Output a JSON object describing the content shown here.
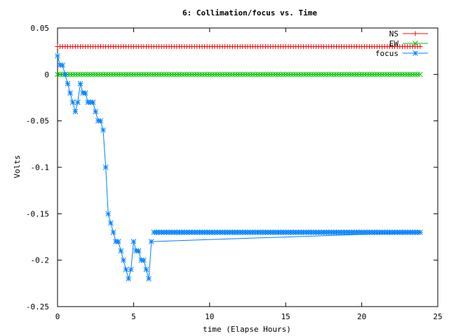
{
  "chart_data": {
    "type": "line",
    "title": "6: Collimation/focus vs. Time",
    "xlabel": "time (Elapse Hours)",
    "ylabel": "Volts",
    "xlim": [
      0,
      25
    ],
    "ylim": [
      -0.25,
      0.05
    ],
    "x_ticks": [
      "0",
      "5",
      "10",
      "15",
      "20",
      "25"
    ],
    "y_ticks": [
      "0.05",
      "0",
      "-0.05",
      "-0.1",
      "-0.15",
      "-0.2",
      "-0.25"
    ],
    "grid": false,
    "legend_position": "top-right",
    "series": [
      {
        "name": "NS",
        "color": "#ff0000",
        "marker": "plus",
        "x": [
          0,
          24
        ],
        "y": [
          0.03,
          0.03
        ],
        "sample_interval": 0.1667
      },
      {
        "name": "EW",
        "color": "#00c000",
        "marker": "x",
        "x": [
          0,
          24
        ],
        "y": [
          0.0,
          0.0
        ],
        "sample_interval": 0.1667
      },
      {
        "name": "focus",
        "color": "#0080ff",
        "marker": "star",
        "x": [
          0.0,
          0.17,
          0.33,
          0.5,
          0.67,
          0.83,
          1.0,
          1.17,
          1.33,
          1.5,
          1.67,
          1.83,
          2.0,
          2.17,
          2.33,
          2.5,
          2.67,
          2.83,
          3.0,
          3.17,
          3.33,
          3.5,
          3.67,
          3.83,
          4.0,
          4.17,
          4.33,
          4.5,
          4.67,
          4.83,
          5.0,
          5.17,
          5.33,
          5.5,
          5.67,
          5.83,
          6.0,
          6.17,
          24.0
        ],
        "y": [
          0.02,
          0.01,
          0.01,
          0.0,
          -0.01,
          -0.02,
          -0.03,
          -0.04,
          -0.03,
          -0.01,
          -0.02,
          -0.02,
          -0.03,
          -0.03,
          -0.03,
          -0.04,
          -0.05,
          -0.05,
          -0.06,
          -0.1,
          -0.15,
          -0.16,
          -0.17,
          -0.18,
          -0.18,
          -0.19,
          -0.2,
          -0.21,
          -0.22,
          -0.21,
          -0.18,
          -0.19,
          -0.19,
          -0.2,
          -0.2,
          -0.21,
          -0.22,
          -0.18,
          -0.17
        ],
        "hold_after_last_point": -0.17
      }
    ]
  }
}
